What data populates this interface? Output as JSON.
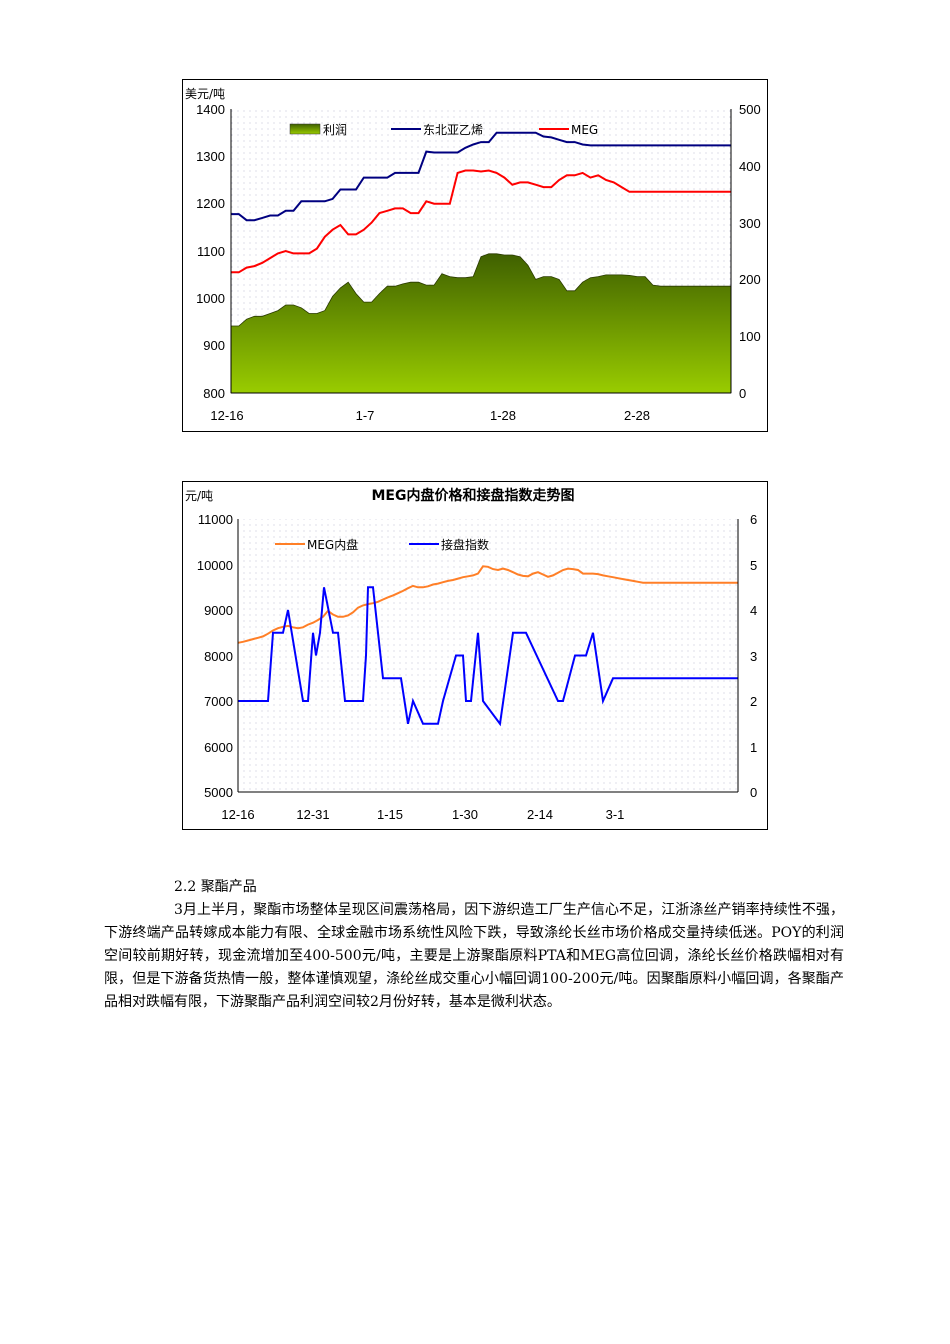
{
  "chart_data": [
    {
      "type": "line",
      "title": "",
      "ylabel": "美元/吨",
      "y_left_ticks": [
        800,
        900,
        1000,
        1100,
        1200,
        1300,
        1400
      ],
      "y_right_ticks": [
        0,
        100,
        200,
        300,
        400,
        500
      ],
      "ylim_left": [
        800,
        1400
      ],
      "ylim_right": [
        0,
        500
      ],
      "x_tick_labels": [
        "12-16",
        "1-7",
        "1-28",
        "2-28"
      ],
      "legend": [
        "利润",
        "东北亚乙烯",
        "MEG"
      ],
      "legend_position": "top",
      "grid": false,
      "x": [
        0,
        1,
        2,
        3,
        4,
        5,
        6,
        7,
        8,
        9,
        10,
        11,
        12,
        13,
        14,
        15,
        16,
        17,
        18,
        19,
        20,
        21,
        22,
        23,
        24,
        25,
        26,
        27,
        28,
        29,
        30,
        31,
        32,
        33,
        34,
        35,
        36,
        37,
        38,
        39,
        40,
        41,
        42,
        43,
        44,
        45,
        46,
        47,
        48,
        49,
        50,
        51,
        52,
        53,
        54,
        55,
        56,
        57,
        58,
        59,
        60,
        61,
        62,
        63,
        64
      ],
      "series": [
        {
          "name": "利润",
          "type": "area",
          "axis": "right",
          "color": "#5a8a00",
          "values": [
            118,
            118,
            130,
            135,
            135,
            140,
            145,
            155,
            155,
            150,
            140,
            140,
            145,
            170,
            185,
            195,
            175,
            160,
            160,
            175,
            188,
            188,
            192,
            195,
            195,
            190,
            190,
            210,
            205,
            203,
            203,
            205,
            240,
            245,
            245,
            243,
            243,
            240,
            225,
            200,
            205,
            205,
            200,
            180,
            180,
            195,
            203,
            205,
            208,
            208,
            208,
            207,
            205,
            205,
            190,
            188,
            188,
            188,
            188,
            188,
            188,
            188,
            188,
            188,
            188
          ]
        },
        {
          "name": "东北亚乙烯",
          "type": "line",
          "axis": "left",
          "color": "#000080",
          "values": [
            1178,
            1178,
            1165,
            1165,
            1170,
            1175,
            1175,
            1185,
            1185,
            1205,
            1205,
            1205,
            1205,
            1210,
            1230,
            1230,
            1230,
            1255,
            1255,
            1255,
            1255,
            1265,
            1265,
            1265,
            1265,
            1310,
            1308,
            1308,
            1308,
            1308,
            1318,
            1325,
            1330,
            1330,
            1350,
            1350,
            1350,
            1350,
            1350,
            1350,
            1342,
            1340,
            1335,
            1330,
            1330,
            1325,
            1323,
            1323,
            1323,
            1323,
            1323,
            1323,
            1323,
            1323,
            1323,
            1323,
            1323,
            1323,
            1323,
            1323,
            1323,
            1323,
            1323,
            1323,
            1323
          ]
        },
        {
          "name": "MEG",
          "type": "line",
          "axis": "left",
          "color": "#ff0000",
          "values": [
            1055,
            1055,
            1065,
            1068,
            1075,
            1085,
            1095,
            1100,
            1095,
            1095,
            1095,
            1105,
            1130,
            1145,
            1155,
            1135,
            1135,
            1145,
            1160,
            1180,
            1185,
            1190,
            1190,
            1180,
            1180,
            1205,
            1200,
            1200,
            1200,
            1265,
            1270,
            1270,
            1268,
            1270,
            1265,
            1255,
            1240,
            1245,
            1245,
            1240,
            1235,
            1235,
            1250,
            1260,
            1260,
            1265,
            1255,
            1260,
            1250,
            1245,
            1235,
            1225,
            1225,
            1225,
            1225,
            1225,
            1225,
            1225,
            1225,
            1225,
            1225,
            1225,
            1225,
            1225,
            1225
          ]
        }
      ]
    },
    {
      "type": "line",
      "title": "MEG内盘价格和接盘指数走势图",
      "ylabel": "元/吨",
      "y_left_ticks": [
        5000,
        6000,
        7000,
        8000,
        9000,
        10000,
        11000
      ],
      "y_right_ticks": [
        0,
        1,
        2,
        3,
        4,
        5,
        6
      ],
      "ylim_left": [
        5000,
        11000
      ],
      "ylim_right": [
        0,
        6
      ],
      "x_tick_labels": [
        "12-16",
        "12-31",
        "1-15",
        "1-30",
        "2-14",
        "3-1"
      ],
      "legend": [
        "MEG内盘",
        "接盘指数"
      ],
      "legend_position": "top",
      "grid": false,
      "series": [
        {
          "name": "MEG内盘",
          "axis": "left",
          "color": "#ff7f27",
          "x": [
            0,
            5,
            10,
            15,
            20,
            25,
            30,
            35,
            40,
            45,
            50,
            55,
            60,
            65,
            70,
            75,
            80,
            85,
            90,
            95,
            100,
            105,
            110,
            115,
            120,
            125,
            130,
            135,
            140,
            145,
            150,
            155,
            160,
            165,
            170,
            175,
            180,
            185,
            190,
            195,
            200,
            205,
            210,
            215,
            220,
            225,
            230,
            235,
            240,
            245,
            250,
            255,
            260,
            265,
            270,
            275,
            280,
            285,
            290,
            295,
            300,
            305,
            310,
            315,
            320,
            325,
            330,
            335,
            340,
            345,
            350,
            355,
            360,
            365,
            370,
            375,
            380,
            385,
            390,
            395,
            400,
            405,
            410,
            415,
            420,
            425,
            430,
            435,
            440,
            445,
            450,
            455,
            460,
            465,
            470,
            475,
            480,
            485,
            490,
            495,
            500
          ],
          "values": [
            8280,
            8300,
            8330,
            8360,
            8390,
            8420,
            8480,
            8550,
            8600,
            8630,
            8650,
            8620,
            8600,
            8620,
            8680,
            8720,
            8780,
            8850,
            8980,
            8900,
            8850,
            8850,
            8880,
            8950,
            9050,
            9100,
            9130,
            9150,
            9180,
            9230,
            9280,
            9320,
            9370,
            9420,
            9480,
            9530,
            9500,
            9500,
            9520,
            9560,
            9580,
            9610,
            9640,
            9660,
            9690,
            9720,
            9740,
            9760,
            9800,
            9960,
            9950,
            9900,
            9880,
            9910,
            9880,
            9830,
            9780,
            9750,
            9740,
            9800,
            9830,
            9780,
            9730,
            9760,
            9820,
            9880,
            9910,
            9900,
            9880,
            9800,
            9800,
            9800,
            9790,
            9760,
            9740,
            9720,
            9700,
            9680,
            9660,
            9640,
            9620,
            9600,
            9600,
            9600,
            9600,
            9600,
            9600,
            9600,
            9600,
            9600,
            9600,
            9600,
            9600,
            9600,
            9600,
            9600,
            9600,
            9600,
            9600,
            9600,
            9600
          ]
        },
        {
          "name": "接盘指数",
          "axis": "right",
          "color": "#0000ff",
          "x": [
            0,
            30,
            35,
            45,
            50,
            65,
            70,
            75,
            78,
            82,
            86,
            95,
            100,
            107,
            110,
            115,
            125,
            128,
            130,
            135,
            145,
            150,
            158,
            163,
            170,
            175,
            185,
            192,
            197,
            200,
            205,
            218,
            225,
            228,
            233,
            240,
            245,
            262,
            275,
            288,
            320,
            325,
            337,
            345,
            348,
            355,
            365,
            375,
            380,
            390,
            400,
            405,
            413,
            418,
            425,
            433,
            435,
            440,
            450,
            455,
            460,
            465,
            470,
            480,
            484,
            490,
            494,
            500
          ],
          "values": [
            2,
            2,
            3.5,
            3.5,
            4,
            2,
            2,
            3.5,
            3,
            3.5,
            4.5,
            3.5,
            3.5,
            2,
            2,
            2,
            2,
            3,
            4.5,
            4.5,
            2.5,
            2.5,
            2.5,
            2.5,
            1.5,
            2,
            1.5,
            1.5,
            1.5,
            1.5,
            2,
            3,
            3,
            2,
            2,
            3.5,
            2,
            1.5,
            3.5,
            3.5,
            2,
            2,
            3,
            3,
            3,
            3.5,
            2,
            2.5,
            2.5,
            2.5,
            2.5,
            2.5,
            2.5,
            2.5,
            2.5,
            2.5,
            2.5,
            2.5,
            2.5,
            2.5,
            2.5,
            2.5,
            2.5,
            2.5,
            2.5,
            2.5,
            2.5,
            2.5
          ]
        }
      ]
    }
  ],
  "chart1": {
    "unit": "美元/吨",
    "y_left": [
      "1400",
      "1300",
      "1200",
      "1100",
      "1000",
      "900",
      "800"
    ],
    "y_right": [
      "500",
      "400",
      "300",
      "200",
      "100",
      "0"
    ],
    "x_labels": [
      "12-16",
      "1-7",
      "1-28",
      "2-28"
    ],
    "legend": {
      "profit": "利润",
      "ethylene": "东北亚乙烯",
      "meg": "MEG"
    },
    "colors": {
      "profit_top": "#3f6000",
      "profit_bottom": "#99cc00",
      "ethylene": "#000080",
      "meg": "#ff0000"
    }
  },
  "chart2": {
    "unit": "元/吨",
    "title": "MEG内盘价格和接盘指数走势图",
    "y_left": [
      "11000",
      "10000",
      "9000",
      "8000",
      "7000",
      "6000",
      "5000"
    ],
    "y_right": [
      "6",
      "5",
      "4",
      "3",
      "2",
      "1",
      "0"
    ],
    "x_labels": [
      "12-16",
      "12-31",
      "1-15",
      "1-30",
      "2-14",
      "3-1"
    ],
    "legend": {
      "meg_domestic": "MEG内盘",
      "index": "接盘指数"
    },
    "colors": {
      "meg_domestic": "#ff7f27",
      "index": "#0000ff"
    }
  },
  "document": {
    "section_heading": "2.2 聚酯产品",
    "paragraph": "3月上半月，聚酯市场整体呈现区间震荡格局，因下游织造工厂生产信心不足，江浙涤丝产销率持续性不强，下游终端产品转嫁成本能力有限、全球金融市场系统性风险下跌，导致涤纶长丝市场价格成交量持续低迷。POY的利润空间较前期好转，现金流增加至400-500元/吨，主要是上游聚酯原料PTA和MEG高位回调，涤纶长丝价格跌幅相对有限，但是下游备货热情一般，整体谨慎观望，涤纶丝成交重心小幅回调100-200元/吨。因聚酯原料小幅回调，各聚酯产品相对跌幅有限，下游聚酯产品利润空间较2月份好转，基本是微利状态。"
  }
}
